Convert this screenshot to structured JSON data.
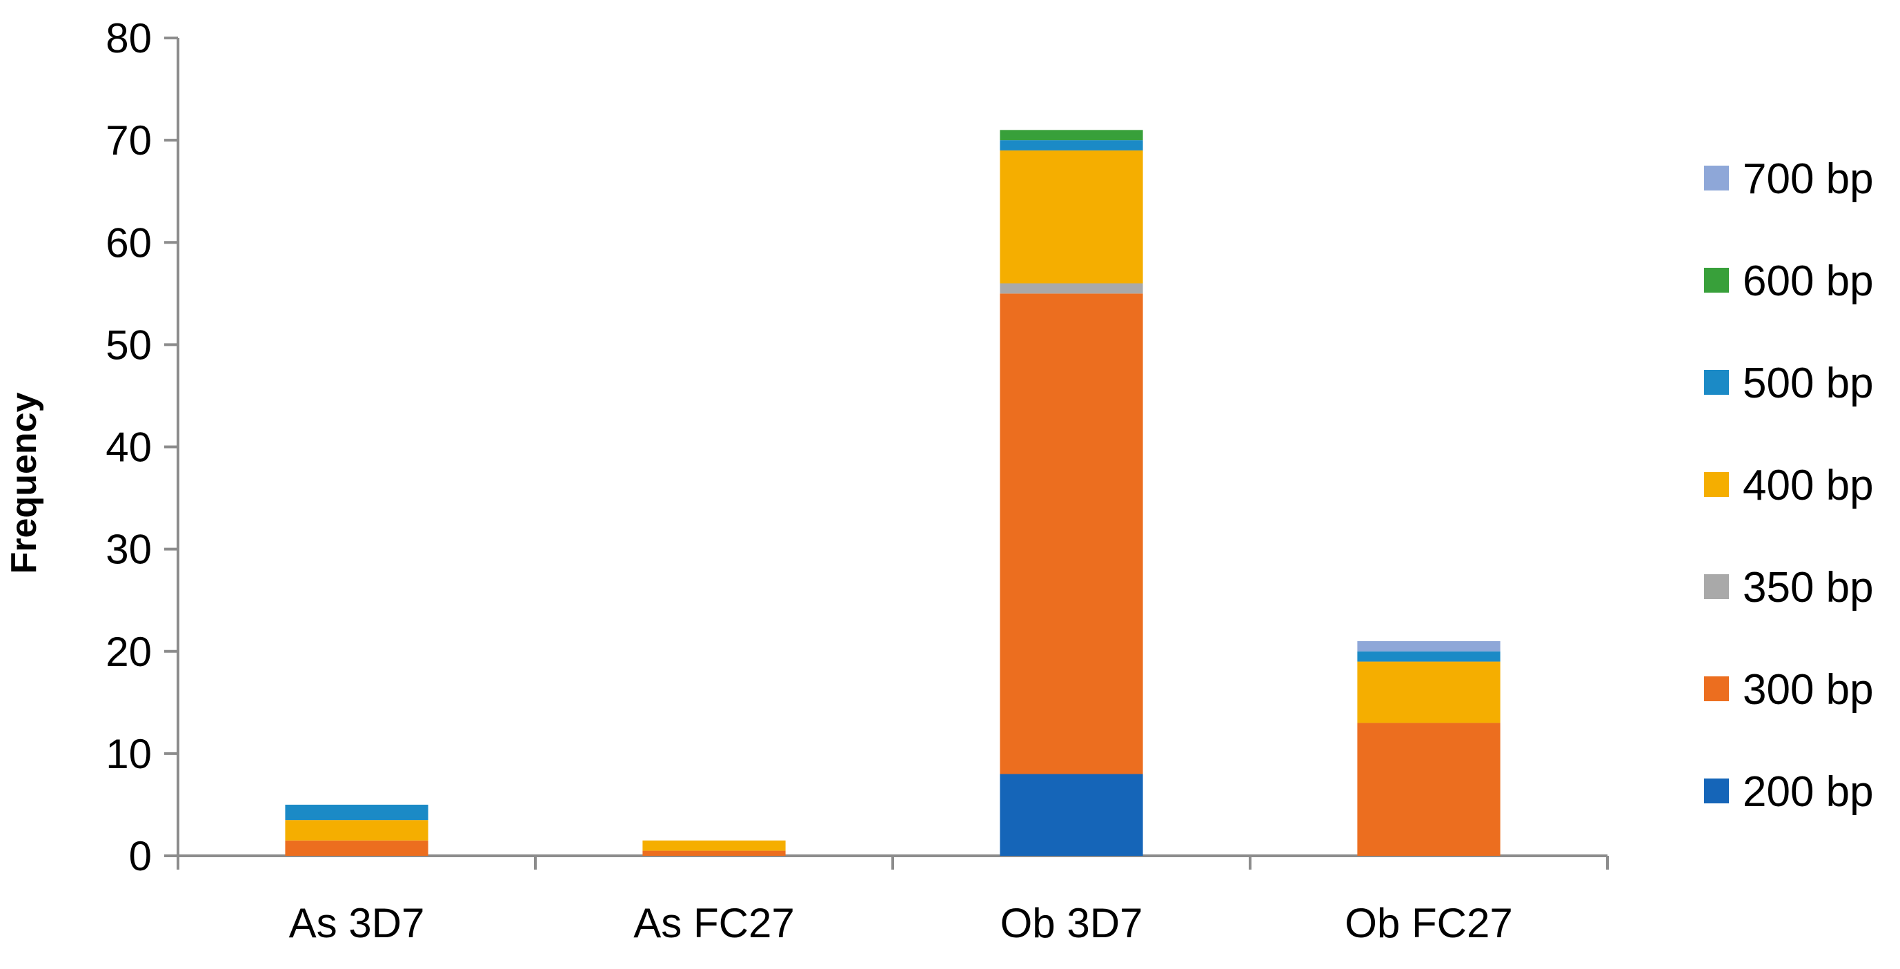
{
  "chart_data": {
    "type": "bar",
    "stacked": true,
    "title": "",
    "xlabel": "",
    "ylabel": "Frequency",
    "ylim": [
      0,
      80
    ],
    "yticks": [
      0,
      10,
      20,
      30,
      40,
      50,
      60,
      70,
      80
    ],
    "categories": [
      "As 3D7",
      "As FC27",
      "Ob 3D7",
      "Ob FC27"
    ],
    "legend_position": "right",
    "grid": false,
    "series": [
      {
        "name": "200 bp",
        "color": "#1565b8",
        "values": [
          0,
          0,
          8,
          0
        ]
      },
      {
        "name": "300 bp",
        "color": "#ec6e1f",
        "values": [
          1.5,
          0.5,
          47,
          13
        ]
      },
      {
        "name": "350 bp",
        "color": "#a9a9a9",
        "values": [
          0,
          0,
          1,
          0
        ]
      },
      {
        "name": "400 bp",
        "color": "#f5ae00",
        "values": [
          2,
          1,
          13,
          6
        ]
      },
      {
        "name": "500 bp",
        "color": "#1b8ac6",
        "values": [
          1.5,
          0,
          1,
          1
        ]
      },
      {
        "name": "600 bp",
        "color": "#38a03a",
        "values": [
          0,
          0,
          1,
          0
        ]
      },
      {
        "name": "700 bp",
        "color": "#8ea7d8",
        "values": [
          0,
          0,
          0,
          1
        ]
      }
    ]
  }
}
